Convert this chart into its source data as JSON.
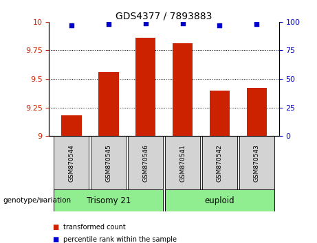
{
  "title": "GDS4377 / 7893883",
  "samples": [
    "GSM870544",
    "GSM870545",
    "GSM870546",
    "GSM870541",
    "GSM870542",
    "GSM870543"
  ],
  "bar_values": [
    9.18,
    9.56,
    9.86,
    9.81,
    9.4,
    9.42
  ],
  "dot_values": [
    97,
    98,
    99,
    99,
    97,
    98
  ],
  "ylim_left": [
    9.0,
    10.0
  ],
  "ylim_right": [
    0,
    100
  ],
  "yticks_left": [
    9.0,
    9.25,
    9.5,
    9.75,
    10.0
  ],
  "yticks_right": [
    0,
    25,
    50,
    75,
    100
  ],
  "ytick_labels_left": [
    "9",
    "9.25",
    "9.5",
    "9.75",
    "10"
  ],
  "ytick_labels_right": [
    "0",
    "25",
    "50",
    "75",
    "100"
  ],
  "bar_color": "#cc2200",
  "dot_color": "#0000cc",
  "group1_label": "Trisomy 21",
  "group2_label": "euploid",
  "group1_indices": [
    0,
    1,
    2
  ],
  "group2_indices": [
    3,
    4,
    5
  ],
  "group_bg_color": "#90ee90",
  "xticklabel_bg": "#d3d3d3",
  "legend_bar_label": "transformed count",
  "legend_dot_label": "percentile rank within the sample",
  "genotype_label": "genotype/variation",
  "ytick_left_color": "#cc2200",
  "ytick_right_color": "#0000cc",
  "grid_yticks": [
    9.25,
    9.5,
    9.75
  ]
}
